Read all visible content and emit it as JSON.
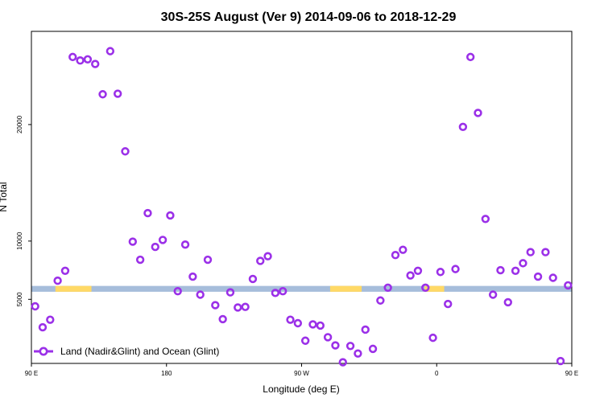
{
  "chart_data": {
    "type": "scatter",
    "title": "30S-25S August (Ver 9)   2014-09-06 to 2018-12-29",
    "xlabel": "Longitude (deg E)",
    "ylabel": "N Total",
    "xlim": [
      90,
      450
    ],
    "ylim": [
      -500,
      28000
    ],
    "x_ticks": [
      {
        "value": 90,
        "label": "90 E"
      },
      {
        "value": 180,
        "label": "180"
      },
      {
        "value": 270,
        "label": "90 W"
      },
      {
        "value": 360,
        "label": "0"
      },
      {
        "value": 450,
        "label": "90 E"
      },
      {
        "value": 540,
        "label": "180"
      }
    ],
    "y_ticks": [
      {
        "value": 5000,
        "label": "5000"
      },
      {
        "value": 10000,
        "label": "10000"
      },
      {
        "value": 20000,
        "label": "20000"
      }
    ],
    "grid": false,
    "legend": {
      "position": "bottom-left",
      "entries": [
        "Land (Nadir&Glint) and Ocean (Glint)"
      ]
    },
    "band": {
      "y_low": 5650,
      "y_high": 6150,
      "ocean_color": "#a6bddb",
      "land_color": "#ffd966",
      "land_segments": [
        [
          106,
          130
        ],
        [
          289,
          310
        ],
        [
          352,
          365
        ],
        [
          473,
          512
        ]
      ]
    },
    "series": [
      {
        "name": "Land (Nadir&Glint) and Ocean (Glint)",
        "color": "#9b30e8",
        "x": [
          92.5,
          97.5,
          102.5,
          107.5,
          112.5,
          117.5,
          122.5,
          127.5,
          132.5,
          137.5,
          142.5,
          147.5,
          152.5,
          157.5,
          162.5,
          167.5,
          172.5,
          177.5,
          182.5,
          187.5,
          192.5,
          197.5,
          202.5,
          207.5,
          212.5,
          217.5,
          222.5,
          227.5,
          232.5,
          237.5,
          242.5,
          247.5,
          252.5,
          257.5,
          262.5,
          267.5,
          272.5,
          277.5,
          282.5,
          287.5,
          292.5,
          297.5,
          302.5,
          307.5,
          312.5,
          317.5,
          322.5,
          327.5,
          332.5,
          337.5,
          342.5,
          347.5,
          352.5,
          357.5,
          362.5,
          367.5,
          372.5,
          377.5,
          382.5,
          387.5,
          392.5,
          397.5,
          402.5,
          407.5,
          412.5,
          417.5,
          422.5,
          427.5,
          432.5,
          437.5,
          442.5,
          447.5
        ],
        "y": [
          4400,
          2600,
          3250,
          6600,
          7450,
          25800,
          25500,
          25600,
          25200,
          22600,
          26300,
          22650,
          17700,
          9950,
          8400,
          12400,
          9500,
          10100,
          12200,
          5700,
          9700,
          6950,
          5400,
          8400,
          4500,
          3300,
          5600,
          4300,
          4350,
          6750,
          8300,
          8700,
          5550,
          5700,
          3250,
          2950,
          1450,
          2850,
          2750,
          1750,
          1050,
          -400,
          1000,
          350,
          2400,
          750,
          4900,
          6000,
          8800,
          9250,
          7050,
          7450,
          6000,
          1700,
          7350,
          4600,
          7600,
          19800,
          25800,
          21000,
          11900,
          5400,
          7500,
          4750,
          7450,
          8100,
          9050,
          6950,
          9050,
          6850,
          -300,
          6200
        ]
      }
    ]
  }
}
